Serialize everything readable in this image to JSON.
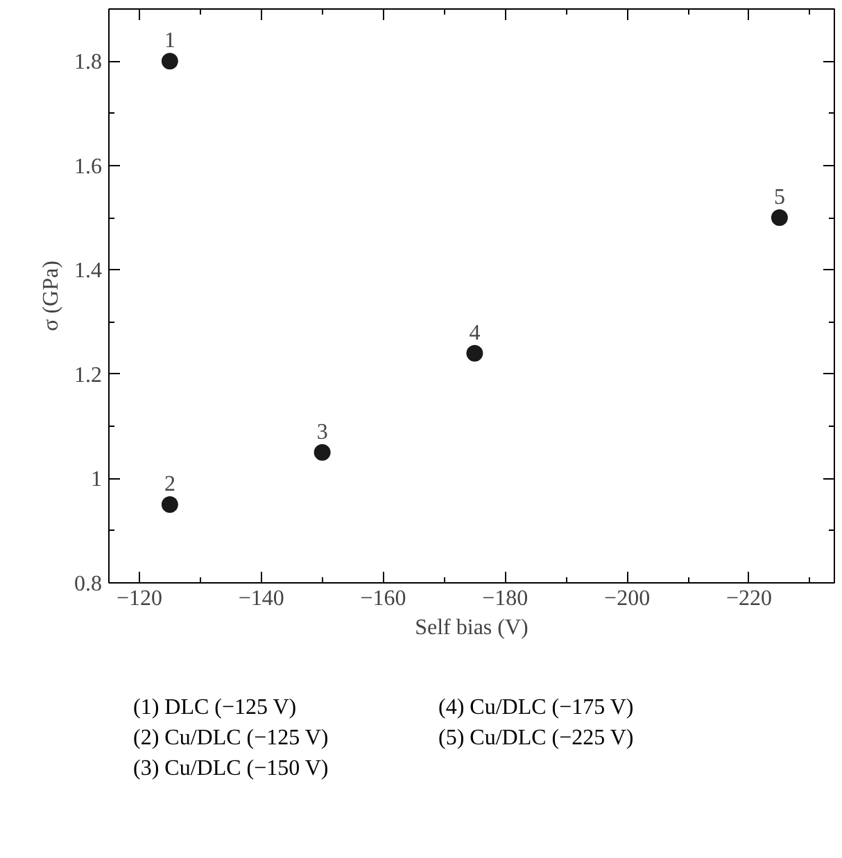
{
  "chart_data": {
    "type": "scatter",
    "xlabel": "Self bias (V)",
    "ylabel": "σ (GPa)",
    "x": [
      -125,
      -125,
      -150,
      -175,
      -225
    ],
    "series": [
      {
        "color": "#1a1a1a",
        "values": [
          1.8,
          0.95,
          1.05,
          1.24,
          1.5
        ]
      }
    ],
    "marker": "circle",
    "grid": false,
    "xlim": [
      -115,
      -234
    ],
    "xticks": [
      -120,
      -140,
      -160,
      -180,
      -200,
      -220
    ],
    "ylim": [
      0.8,
      1.9
    ],
    "yticks": [
      0.8,
      1.0,
      1.2,
      1.4,
      1.6,
      1.8
    ],
    "annotations": [
      {
        "text": "1",
        "x": -125,
        "y": 1.8
      },
      {
        "text": "2",
        "x": -125,
        "y": 0.95
      },
      {
        "text": "3",
        "x": -150,
        "y": 1.05
      },
      {
        "text": "4",
        "x": -175,
        "y": 1.24
      },
      {
        "text": "5",
        "x": -225,
        "y": 1.5
      },
      "(1) DLC (−125 V)",
      "(2) Cu/DLC (−125 V)",
      "(3) Cu/DLC (−150 V)",
      "(4) Cu/DLC (−175 V)",
      "(5) Cu/DLC (−225 V)"
    ]
  }
}
